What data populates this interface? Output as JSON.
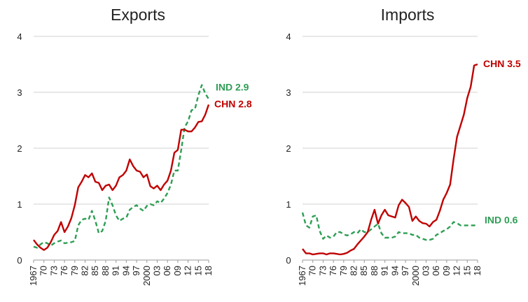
{
  "chart_data": [
    {
      "type": "line",
      "title": "Exports",
      "ylim": [
        0,
        4
      ],
      "yticks": [
        "0",
        "1",
        "2",
        "3",
        "4"
      ],
      "xlim": [
        1967,
        2018
      ],
      "xtick_values": [
        1967,
        1970,
        1973,
        1976,
        1979,
        1982,
        1985,
        1988,
        1991,
        1994,
        1997,
        2000,
        2003,
        2006,
        2009,
        2012,
        2015,
        2018
      ],
      "xtick_labels": [
        "1967",
        "70",
        "73",
        "76",
        "79",
        "82",
        "85",
        "88",
        "91",
        "94",
        "97",
        "2000",
        "03",
        "06",
        "09",
        "12",
        "15",
        "18"
      ],
      "grid": "horizontal",
      "series": [
        {
          "name": "CHN",
          "label": "CHN 2.8",
          "color": "#c00000",
          "style": "solid",
          "x": [
            1967,
            1968,
            1969,
            1970,
            1971,
            1972,
            1973,
            1974,
            1975,
            1976,
            1977,
            1978,
            1979,
            1980,
            1981,
            1982,
            1983,
            1984,
            1985,
            1986,
            1987,
            1988,
            1989,
            1990,
            1991,
            1992,
            1993,
            1994,
            1995,
            1996,
            1997,
            1998,
            1999,
            2000,
            2001,
            2002,
            2003,
            2004,
            2005,
            2006,
            2007,
            2008,
            2009,
            2010,
            2011,
            2012,
            2013,
            2014,
            2015,
            2016,
            2017,
            2018
          ],
          "y": [
            0.36,
            0.28,
            0.22,
            0.18,
            0.22,
            0.32,
            0.45,
            0.52,
            0.68,
            0.5,
            0.6,
            0.75,
            0.98,
            1.3,
            1.4,
            1.52,
            1.48,
            1.55,
            1.4,
            1.38,
            1.25,
            1.33,
            1.35,
            1.25,
            1.33,
            1.48,
            1.52,
            1.6,
            1.8,
            1.68,
            1.6,
            1.58,
            1.48,
            1.53,
            1.32,
            1.28,
            1.33,
            1.25,
            1.35,
            1.42,
            1.6,
            1.92,
            1.97,
            2.33,
            2.33,
            2.3,
            2.3,
            2.37,
            2.47,
            2.48,
            2.6,
            2.78
          ]
        },
        {
          "name": "IND",
          "label": "IND 2.9",
          "color": "#2e9e54",
          "style": "dashed",
          "x": [
            1967,
            1968,
            1969,
            1970,
            1971,
            1972,
            1973,
            1974,
            1975,
            1976,
            1977,
            1978,
            1979,
            1980,
            1981,
            1982,
            1983,
            1984,
            1985,
            1986,
            1987,
            1988,
            1989,
            1990,
            1991,
            1992,
            1993,
            1994,
            1995,
            1996,
            1997,
            1998,
            1999,
            2000,
            2001,
            2002,
            2003,
            2004,
            2005,
            2006,
            2007,
            2008,
            2009,
            2010,
            2011,
            2012,
            2013,
            2014,
            2015,
            2016,
            2017,
            2018
          ],
          "y": [
            0.24,
            0.22,
            0.28,
            0.32,
            0.3,
            0.26,
            0.3,
            0.33,
            0.35,
            0.3,
            0.31,
            0.32,
            0.34,
            0.62,
            0.72,
            0.74,
            0.72,
            0.88,
            0.7,
            0.48,
            0.52,
            0.7,
            1.12,
            0.98,
            0.8,
            0.7,
            0.74,
            0.76,
            0.9,
            0.95,
            0.98,
            0.92,
            0.88,
            0.97,
            1.0,
            0.98,
            1.05,
            1.02,
            1.1,
            1.2,
            1.35,
            1.6,
            1.6,
            1.97,
            2.38,
            2.48,
            2.68,
            2.7,
            2.95,
            3.13,
            2.98,
            2.88
          ]
        }
      ]
    },
    {
      "type": "line",
      "title": "Imports",
      "ylim": [
        0,
        4
      ],
      "yticks": [
        "0",
        "1",
        "2",
        "3",
        "4"
      ],
      "xlim": [
        1967,
        2018
      ],
      "xtick_values": [
        1967,
        1970,
        1973,
        1976,
        1979,
        1982,
        1985,
        1988,
        1991,
        1994,
        1997,
        2000,
        2003,
        2006,
        2009,
        2012,
        2015,
        2018
      ],
      "xtick_labels": [
        "1967",
        "70",
        "73",
        "76",
        "79",
        "82",
        "85",
        "88",
        "91",
        "94",
        "97",
        "2000",
        "03",
        "06",
        "09",
        "12",
        "15",
        "18"
      ],
      "grid": "horizontal",
      "series": [
        {
          "name": "CHN",
          "label": "CHN 3.5",
          "color": "#c00000",
          "style": "solid",
          "x": [
            1967,
            1968,
            1969,
            1970,
            1971,
            1972,
            1973,
            1974,
            1975,
            1976,
            1977,
            1978,
            1979,
            1980,
            1981,
            1982,
            1983,
            1984,
            1985,
            1986,
            1987,
            1988,
            1989,
            1990,
            1991,
            1992,
            1993,
            1994,
            1995,
            1996,
            1997,
            1998,
            1999,
            2000,
            2001,
            2002,
            2003,
            2004,
            2005,
            2006,
            2007,
            2008,
            2009,
            2010,
            2011,
            2012,
            2013,
            2014,
            2015,
            2016,
            2017,
            2018
          ],
          "y": [
            0.2,
            0.12,
            0.12,
            0.1,
            0.11,
            0.12,
            0.12,
            0.1,
            0.12,
            0.12,
            0.11,
            0.1,
            0.11,
            0.13,
            0.17,
            0.2,
            0.28,
            0.35,
            0.42,
            0.5,
            0.72,
            0.9,
            0.65,
            0.8,
            0.9,
            0.8,
            0.78,
            0.76,
            0.98,
            1.08,
            1.02,
            0.95,
            0.7,
            0.78,
            0.7,
            0.66,
            0.65,
            0.6,
            0.68,
            0.72,
            0.88,
            1.08,
            1.2,
            1.35,
            1.8,
            2.2,
            2.4,
            2.6,
            2.9,
            3.1,
            3.48,
            3.5
          ]
        },
        {
          "name": "IND",
          "label": "IND 0.6",
          "color": "#2e9e54",
          "style": "dashed",
          "x": [
            1967,
            1968,
            1969,
            1970,
            1971,
            1972,
            1973,
            1974,
            1975,
            1976,
            1977,
            1978,
            1979,
            1980,
            1981,
            1982,
            1983,
            1984,
            1985,
            1986,
            1987,
            1988,
            1989,
            1990,
            1991,
            1992,
            1993,
            1994,
            1995,
            1996,
            1997,
            1998,
            1999,
            2000,
            2001,
            2002,
            2003,
            2004,
            2005,
            2006,
            2007,
            2008,
            2009,
            2010,
            2011,
            2012,
            2013,
            2014,
            2015,
            2016,
            2017,
            2018
          ],
          "y": [
            0.85,
            0.62,
            0.58,
            0.78,
            0.8,
            0.52,
            0.38,
            0.44,
            0.4,
            0.42,
            0.5,
            0.5,
            0.46,
            0.44,
            0.46,
            0.5,
            0.48,
            0.55,
            0.5,
            0.5,
            0.55,
            0.6,
            0.65,
            0.48,
            0.4,
            0.4,
            0.4,
            0.42,
            0.5,
            0.48,
            0.48,
            0.48,
            0.45,
            0.45,
            0.4,
            0.38,
            0.36,
            0.36,
            0.38,
            0.45,
            0.48,
            0.52,
            0.55,
            0.6,
            0.68,
            0.66,
            0.62,
            0.62,
            0.62,
            0.62,
            0.62,
            0.63
          ]
        }
      ]
    }
  ]
}
